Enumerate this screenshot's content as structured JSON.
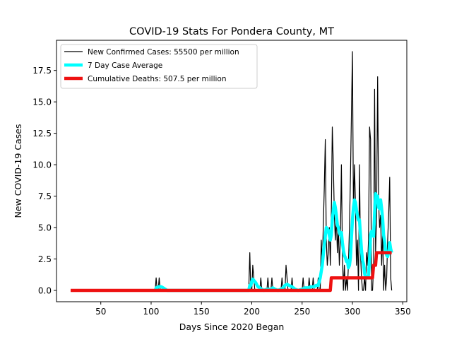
{
  "chart_data": {
    "type": "line",
    "title": "COVID-19 Stats For Pondera County, MT",
    "xlabel": "Days Since 2020 Began",
    "ylabel": "New COVID-19 Cases",
    "xlim": [
      6,
      354
    ],
    "ylim": [
      -0.9,
      19.9
    ],
    "x_ticks": [
      {
        "value": 50,
        "label": "50"
      },
      {
        "value": 100,
        "label": "100"
      },
      {
        "value": 150,
        "label": "150"
      },
      {
        "value": 200,
        "label": "200"
      },
      {
        "value": 250,
        "label": "250"
      },
      {
        "value": 300,
        "label": "300"
      },
      {
        "value": 350,
        "label": "350"
      }
    ],
    "y_ticks": [
      {
        "value": 0,
        "label": "0.0"
      },
      {
        "value": 2.5,
        "label": "2.5"
      },
      {
        "value": 5,
        "label": "5.0"
      },
      {
        "value": 7.5,
        "label": "7.5"
      },
      {
        "value": 10,
        "label": "10.0"
      },
      {
        "value": 12.5,
        "label": "12.5"
      },
      {
        "value": 15,
        "label": "15.0"
      },
      {
        "value": 17.5,
        "label": "17.5"
      }
    ],
    "grid": false,
    "legend_position": "top-left",
    "series": [
      {
        "name": "New Confirmed Cases: 55500 per million",
        "color": "#000000",
        "points": [
          [
            20,
            0
          ],
          [
            104,
            0
          ],
          [
            105,
            1
          ],
          [
            106,
            0
          ],
          [
            107,
            0
          ],
          [
            108,
            1
          ],
          [
            109,
            0
          ],
          [
            197,
            0
          ],
          [
            198,
            3
          ],
          [
            199,
            0
          ],
          [
            200,
            0
          ],
          [
            201,
            2
          ],
          [
            202,
            1
          ],
          [
            203,
            0
          ],
          [
            208,
            0
          ],
          [
            209,
            1
          ],
          [
            210,
            0
          ],
          [
            215,
            0
          ],
          [
            216,
            1
          ],
          [
            217,
            0
          ],
          [
            219,
            0
          ],
          [
            220,
            1
          ],
          [
            221,
            0
          ],
          [
            229,
            0
          ],
          [
            230,
            1
          ],
          [
            231,
            0
          ],
          [
            233,
            0
          ],
          [
            234,
            2
          ],
          [
            235,
            1
          ],
          [
            236,
            0
          ],
          [
            239,
            0
          ],
          [
            240,
            1
          ],
          [
            241,
            0
          ],
          [
            250,
            0
          ],
          [
            251,
            1
          ],
          [
            252,
            0
          ],
          [
            256,
            0
          ],
          [
            257,
            1
          ],
          [
            258,
            0
          ],
          [
            260,
            0
          ],
          [
            261,
            1
          ],
          [
            262,
            0
          ],
          [
            265,
            0
          ],
          [
            266,
            1
          ],
          [
            267,
            0
          ],
          [
            268,
            0
          ],
          [
            269,
            4
          ],
          [
            270,
            2
          ],
          [
            271,
            5
          ],
          [
            272,
            8
          ],
          [
            273,
            12
          ],
          [
            274,
            4
          ],
          [
            275,
            2
          ],
          [
            276,
            3
          ],
          [
            277,
            5
          ],
          [
            278,
            2
          ],
          [
            279,
            6
          ],
          [
            280,
            13
          ],
          [
            281,
            10
          ],
          [
            282,
            6
          ],
          [
            283,
            4
          ],
          [
            284,
            6
          ],
          [
            285,
            3
          ],
          [
            286,
            5
          ],
          [
            287,
            2
          ],
          [
            288,
            4
          ],
          [
            289,
            10
          ],
          [
            290,
            3
          ],
          [
            291,
            0
          ],
          [
            292,
            2
          ],
          [
            293,
            0
          ],
          [
            294,
            1
          ],
          [
            295,
            0
          ],
          [
            296,
            2
          ],
          [
            297,
            5
          ],
          [
            298,
            9
          ],
          [
            299,
            14
          ],
          [
            300,
            19
          ],
          [
            301,
            6
          ],
          [
            302,
            10
          ],
          [
            303,
            7
          ],
          [
            304,
            2
          ],
          [
            305,
            4
          ],
          [
            306,
            0
          ],
          [
            307,
            10
          ],
          [
            308,
            3
          ],
          [
            309,
            1
          ],
          [
            310,
            0
          ],
          [
            311,
            0
          ],
          [
            312,
            1
          ],
          [
            313,
            0
          ],
          [
            314,
            3
          ],
          [
            315,
            2
          ],
          [
            316,
            4
          ],
          [
            317,
            13
          ],
          [
            318,
            12
          ],
          [
            319,
            0
          ],
          [
            320,
            0
          ],
          [
            321,
            2
          ],
          [
            322,
            16
          ],
          [
            323,
            3
          ],
          [
            324,
            6
          ],
          [
            325,
            17
          ],
          [
            326,
            7
          ],
          [
            327,
            5
          ],
          [
            328,
            6
          ],
          [
            329,
            2
          ],
          [
            330,
            5
          ],
          [
            331,
            0
          ],
          [
            332,
            2
          ],
          [
            333,
            0
          ],
          [
            334,
            1
          ],
          [
            335,
            4
          ],
          [
            336,
            6
          ],
          [
            337,
            9
          ],
          [
            338,
            1
          ],
          [
            339,
            0
          ]
        ]
      },
      {
        "name": "7 Day Case Average",
        "color": "#00ffff",
        "points": [
          [
            104,
            0
          ],
          [
            105,
            0.2
          ],
          [
            106,
            0.2
          ],
          [
            107,
            0.3
          ],
          [
            108,
            0.3
          ],
          [
            109,
            0.3
          ],
          [
            110,
            0.3
          ],
          [
            112,
            0.2
          ],
          [
            114,
            0.1
          ],
          [
            116,
            0
          ],
          [
            197,
            0
          ],
          [
            198,
            0.4
          ],
          [
            199,
            0.4
          ],
          [
            200,
            0.7
          ],
          [
            201,
            0.9
          ],
          [
            202,
            0.8
          ],
          [
            203,
            0.7
          ],
          [
            204,
            0.6
          ],
          [
            206,
            0.3
          ],
          [
            208,
            0.2
          ],
          [
            210,
            0.1
          ],
          [
            212,
            0
          ],
          [
            215,
            0.1
          ],
          [
            217,
            0.1
          ],
          [
            219,
            0.1
          ],
          [
            221,
            0.2
          ],
          [
            223,
            0.1
          ],
          [
            226,
            0
          ],
          [
            229,
            0.1
          ],
          [
            231,
            0.2
          ],
          [
            233,
            0.4
          ],
          [
            235,
            0.5
          ],
          [
            237,
            0.4
          ],
          [
            240,
            0.3
          ],
          [
            243,
            0.1
          ],
          [
            246,
            0
          ],
          [
            250,
            0.1
          ],
          [
            253,
            0.2
          ],
          [
            256,
            0.2
          ],
          [
            259,
            0.3
          ],
          [
            262,
            0.3
          ],
          [
            264,
            0.4
          ],
          [
            266,
            0.4
          ],
          [
            268,
            1.0
          ],
          [
            270,
            2.0
          ],
          [
            272,
            3.6
          ],
          [
            274,
            5.0
          ],
          [
            276,
            4.8
          ],
          [
            278,
            4.0
          ],
          [
            279,
            4.4
          ],
          [
            280,
            5.6
          ],
          [
            281,
            6.4
          ],
          [
            282,
            7.0
          ],
          [
            283,
            6.6
          ],
          [
            284,
            6.0
          ],
          [
            285,
            5.2
          ],
          [
            286,
            5.0
          ],
          [
            287,
            4.6
          ],
          [
            288,
            4.4
          ],
          [
            289,
            4.6
          ],
          [
            290,
            3.8
          ],
          [
            291,
            3.2
          ],
          [
            292,
            2.8
          ],
          [
            293,
            2.6
          ],
          [
            294,
            2.3
          ],
          [
            295,
            2.4
          ],
          [
            296,
            1.8
          ],
          [
            297,
            2.0
          ],
          [
            298,
            2.6
          ],
          [
            299,
            4.2
          ],
          [
            300,
            5.6
          ],
          [
            301,
            6.6
          ],
          [
            302,
            7.2
          ],
          [
            303,
            7.0
          ],
          [
            304,
            6.4
          ],
          [
            305,
            5.9
          ],
          [
            306,
            5.6
          ],
          [
            307,
            5.6
          ],
          [
            308,
            4.4
          ],
          [
            309,
            3.2
          ],
          [
            310,
            2.4
          ],
          [
            311,
            2.1
          ],
          [
            312,
            1.4
          ],
          [
            313,
            1.0
          ],
          [
            314,
            1.0
          ],
          [
            315,
            1.1
          ],
          [
            316,
            1.2
          ],
          [
            317,
            2.6
          ],
          [
            318,
            4.4
          ],
          [
            319,
            4.7
          ],
          [
            320,
            4.5
          ],
          [
            321,
            4.3
          ],
          [
            322,
            6.1
          ],
          [
            323,
            7.7
          ],
          [
            324,
            7.4
          ],
          [
            325,
            7.5
          ],
          [
            326,
            6.6
          ],
          [
            327,
            6.5
          ],
          [
            328,
            7.2
          ],
          [
            329,
            6.5
          ],
          [
            330,
            5.7
          ],
          [
            331,
            4.4
          ],
          [
            332,
            3.9
          ],
          [
            333,
            3.1
          ],
          [
            334,
            2.8
          ],
          [
            335,
            2.7
          ],
          [
            336,
            3.0
          ],
          [
            337,
            3.8
          ],
          [
            338,
            3.3
          ],
          [
            339,
            3.0
          ]
        ]
      },
      {
        "name": "Cumulative Deaths: 507.5 per million",
        "color": "#ee1111",
        "points": [
          [
            20,
            0
          ],
          [
            278,
            0
          ],
          [
            279,
            1
          ],
          [
            319,
            1
          ],
          [
            320,
            1
          ],
          [
            321,
            2
          ],
          [
            323,
            2
          ],
          [
            324,
            3
          ],
          [
            339,
            3
          ]
        ]
      }
    ]
  }
}
